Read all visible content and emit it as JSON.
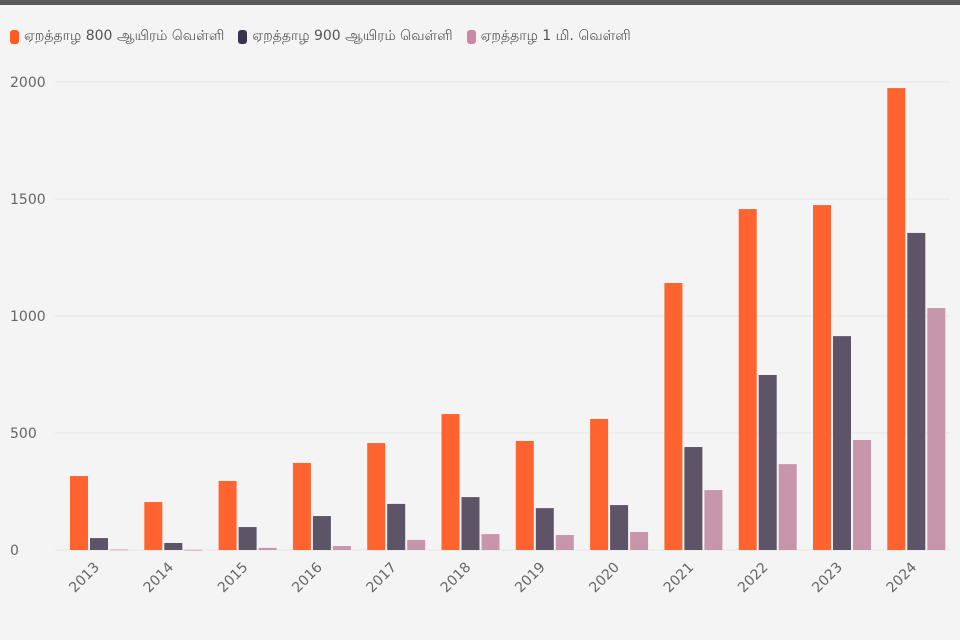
{
  "chart_data": {
    "type": "bar",
    "categories": [
      "2013",
      "2014",
      "2015",
      "2016",
      "2017",
      "2018",
      "2019",
      "2020",
      "2021",
      "2022",
      "2023",
      "2024"
    ],
    "series": [
      {
        "name": "ஏறத்தாழ 800 ஆயிரம் வெள்ளி",
        "color": "#ff6430",
        "values": [
          316,
          205,
          295,
          372,
          457,
          581,
          466,
          560,
          1141,
          1457,
          1474,
          1974
        ]
      },
      {
        "name": "ஏறத்தாழ 900 ஆயிரம் வெள்ளி",
        "color": "#5e5468",
        "values": [
          51,
          30,
          98,
          145,
          197,
          226,
          179,
          192,
          440,
          748,
          914,
          1355
        ]
      },
      {
        "name": "ஏறத்தாழ 1 மி. வெள்ளி",
        "color": "#c896aa",
        "values": [
          2,
          1,
          9,
          17,
          43,
          68,
          64,
          77,
          256,
          367,
          470,
          1034
        ]
      }
    ],
    "yticks": [
      "0",
      "500",
      "1000",
      "1500",
      "2000"
    ],
    "ylim": [
      0,
      2000
    ],
    "grid": true,
    "legend": "top-left",
    "xlabel": "",
    "ylabel": ""
  }
}
